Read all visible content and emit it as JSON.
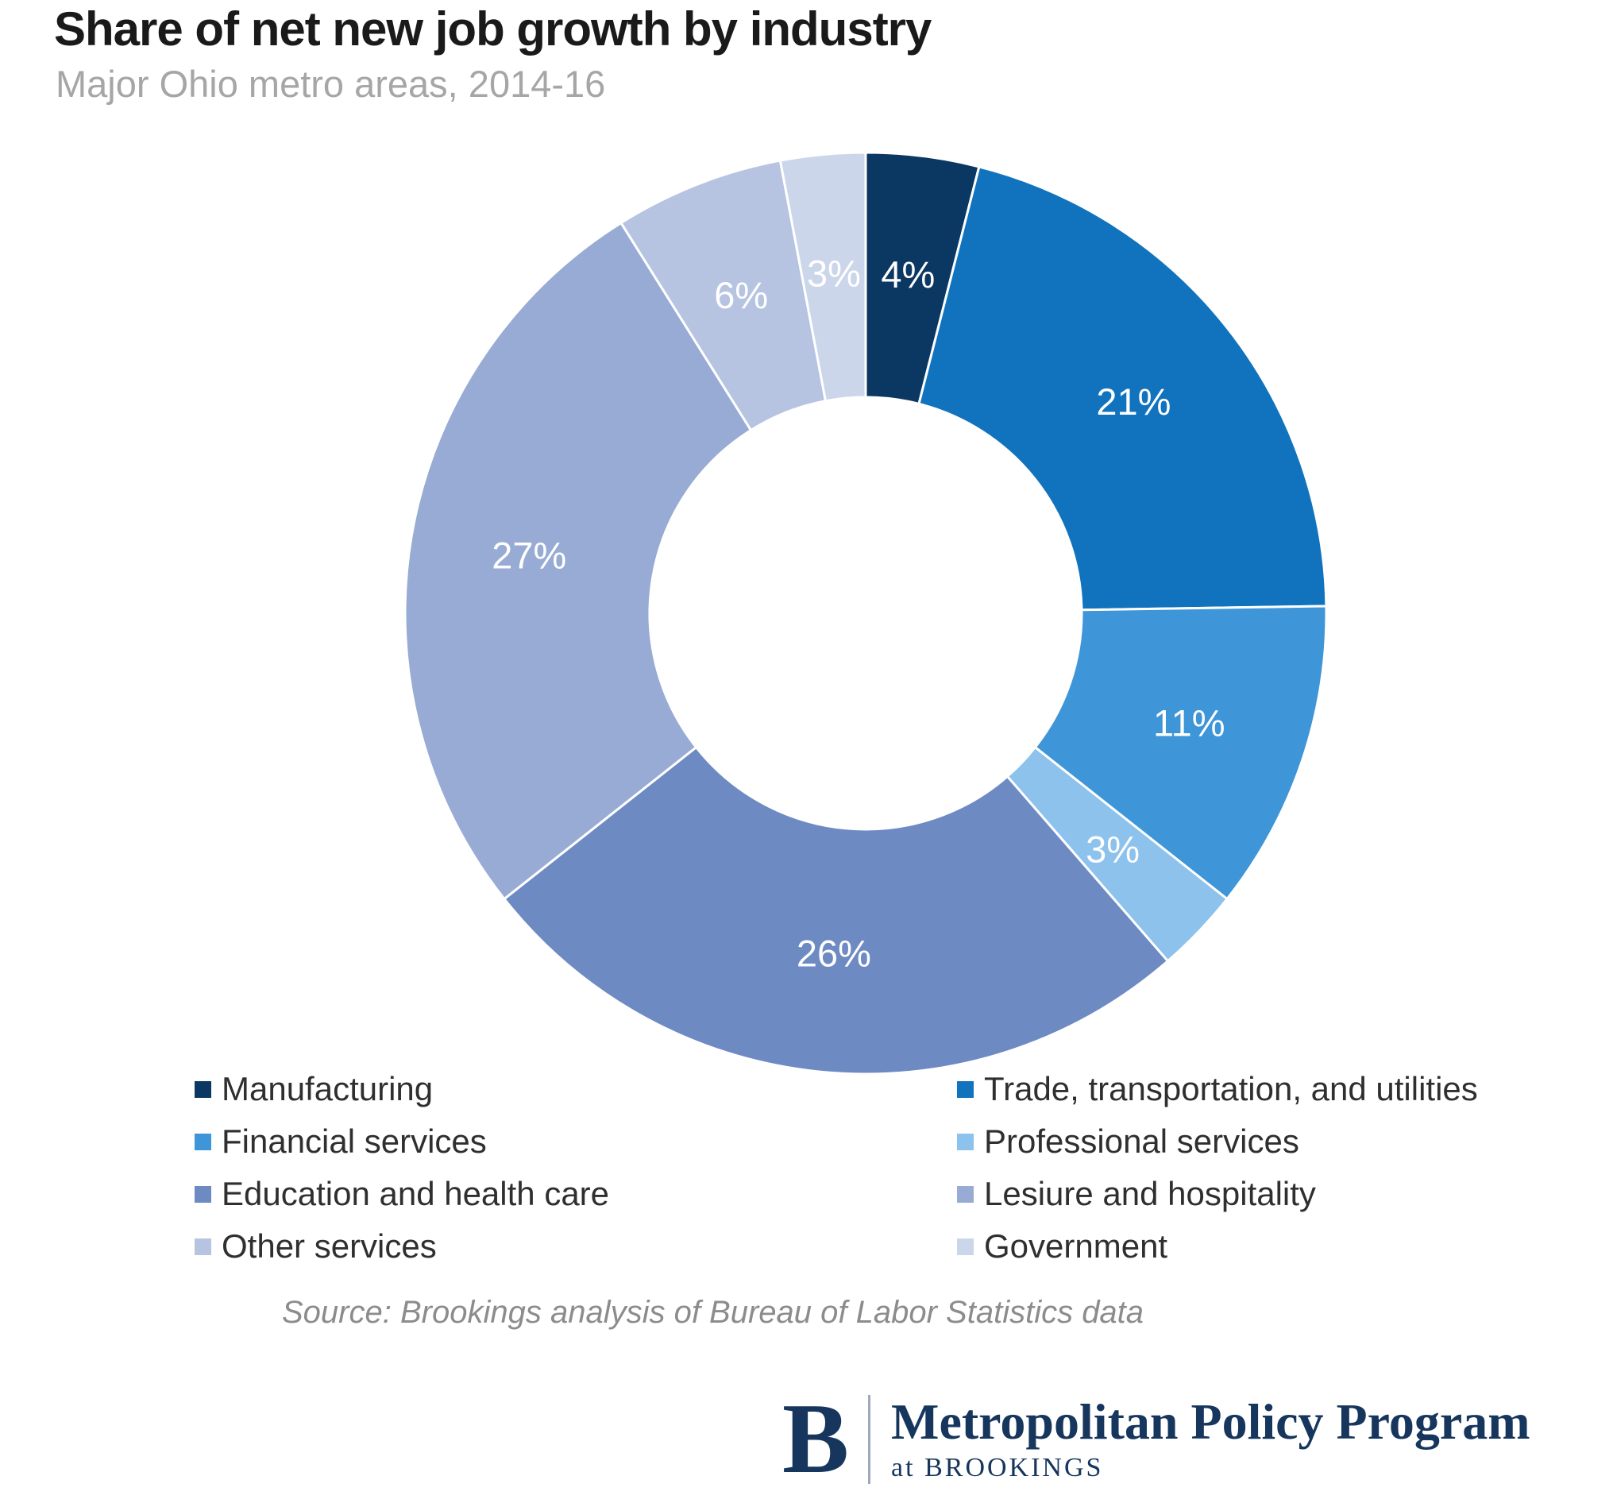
{
  "header": {
    "title": "Share of net new job growth by industry",
    "subtitle": "Major Ohio metro areas, 2014-16"
  },
  "chart_data": {
    "type": "pie",
    "variant": "donut",
    "title": "Share of net new job growth by industry",
    "subtitle": "Major Ohio metro areas, 2014-16",
    "categories": [
      "Manufacturing",
      "Trade, transportation, and utilities",
      "Financial services",
      "Professional services",
      "Education and health care",
      "Lesiure and hospitality",
      "Other services",
      "Government"
    ],
    "values": [
      4,
      21,
      11,
      3,
      26,
      27,
      6,
      3
    ],
    "unit": "%",
    "colors": [
      "#0b3862",
      "#1173bd",
      "#3e95d8",
      "#8cc2ec",
      "#6e8ac3",
      "#98abd4",
      "#b6c3e1",
      "#ccd6ea"
    ],
    "label_color": "#ffffff",
    "start_angle_deg": 0,
    "direction": "clockwise",
    "legend_position": "bottom",
    "legend_columns": 2
  },
  "source": {
    "text": "Source: Brookings analysis of Bureau of Labor Statistics data"
  },
  "footer": {
    "logo_letter": "B",
    "program": "Metropolitan Policy Program",
    "org": "at BROOKINGS"
  }
}
